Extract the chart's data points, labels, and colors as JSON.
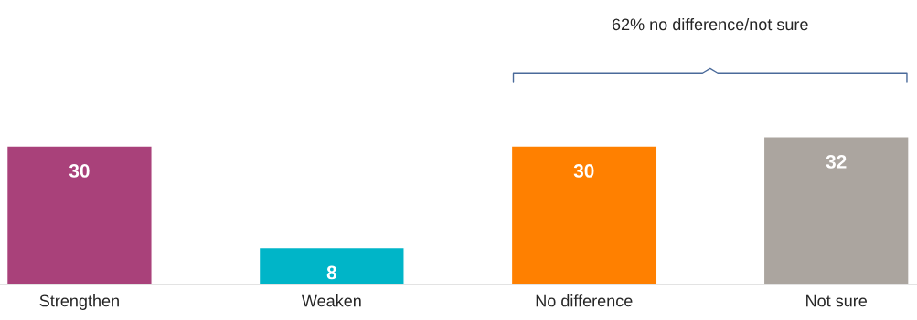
{
  "chart_data": {
    "type": "bar",
    "categories": [
      "Strengthen",
      "Weaken",
      "No difference",
      "Not sure"
    ],
    "values": [
      30,
      8,
      30,
      32
    ],
    "colors": [
      "#a9417a",
      "#00b5c8",
      "#ff8000",
      "#aba59f"
    ],
    "data_labels": true,
    "grid": false,
    "legend": false,
    "annotations": [
      "62% no difference/not sure"
    ]
  }
}
